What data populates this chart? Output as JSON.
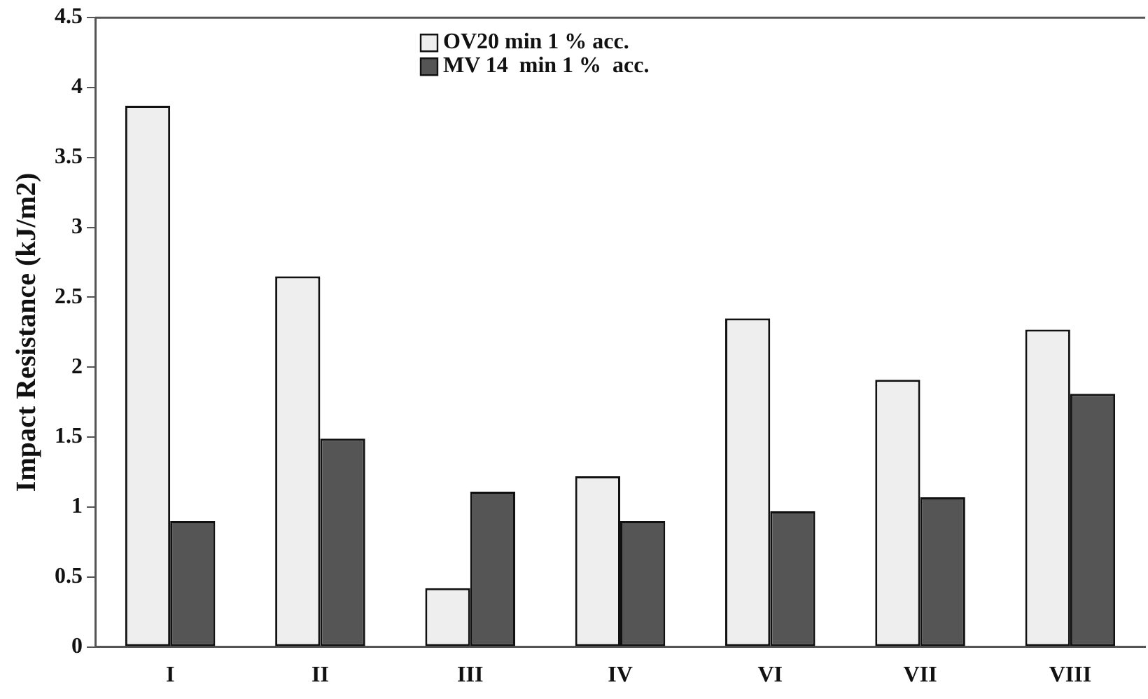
{
  "chart_data": {
    "type": "bar",
    "ylabel": "Impact Resistance (kJ/m2)",
    "categories": [
      "I",
      "II",
      "III",
      "IV",
      "VI",
      "VII",
      "VIII"
    ],
    "series": [
      {
        "name": "OV20 min 1 % acc.",
        "color": "#eeeeee",
        "values": [
          3.87,
          2.65,
          0.42,
          1.22,
          2.35,
          1.91,
          2.27
        ]
      },
      {
        "name": "MV 14  min 1 %  acc.",
        "color": "#555555",
        "values": [
          0.9,
          1.49,
          1.11,
          0.9,
          0.97,
          1.07,
          1.81
        ]
      }
    ],
    "ylim": [
      0,
      4.5
    ],
    "yticks": [
      0,
      0.5,
      1,
      1.5,
      2,
      2.5,
      3,
      3.5,
      4,
      4.5
    ],
    "grid": false,
    "legend": "top"
  }
}
